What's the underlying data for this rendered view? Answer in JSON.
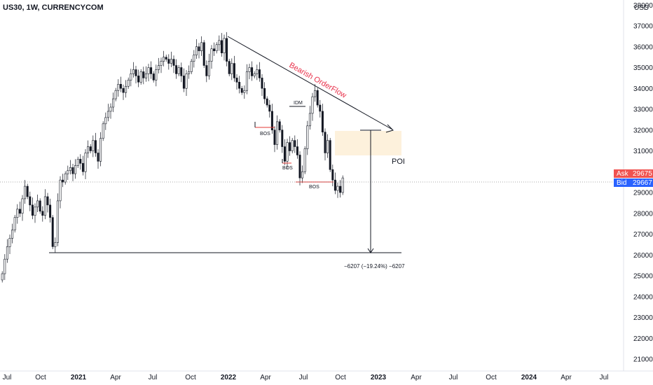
{
  "header": {
    "symbol": "US30, 1W, CURRENCYCOM",
    "currency": "USD"
  },
  "price_tags": {
    "ask_label": "Ask",
    "ask_value": "29675",
    "ask_color": "#f05350",
    "bid_label": "Bid",
    "bid_value": "29667",
    "bid_color": "#2962ff"
  },
  "annotations": {
    "trend_label": "Bearish OrderFlow",
    "trend_color": "#e8304a",
    "bos_labels": [
      "BOS",
      "BOS",
      "BOS"
    ],
    "idm_label": "IDM",
    "poi_label": "POI",
    "measure_label": "−6207 (−19.24%) −6207",
    "poi_color": "#fdf1dc",
    "bos_color": "#e53935"
  },
  "chart_data": {
    "type": "candlestick",
    "title": "US30, 1W, CURRENCYCOM",
    "ylabel": "USD",
    "ylim": [
      20500,
      38200
    ],
    "y_ticks": [
      21000,
      22000,
      23000,
      24000,
      25000,
      26000,
      27000,
      28000,
      29000,
      30000,
      31000,
      32000,
      33000,
      34000,
      35000,
      36000,
      37000,
      38000
    ],
    "x_ticks": [
      {
        "label": "Jul",
        "bold": false
      },
      {
        "label": "Oct",
        "bold": false
      },
      {
        "label": "2021",
        "bold": true
      },
      {
        "label": "Apr",
        "bold": false
      },
      {
        "label": "Jul",
        "bold": false
      },
      {
        "label": "Oct",
        "bold": false
      },
      {
        "label": "2022",
        "bold": true
      },
      {
        "label": "Apr",
        "bold": false
      },
      {
        "label": "Jul",
        "bold": false
      },
      {
        "label": "Oct",
        "bold": false
      },
      {
        "label": "2023",
        "bold": true
      },
      {
        "label": "Apr",
        "bold": false
      },
      {
        "label": "Jul",
        "bold": false
      },
      {
        "label": "Oct",
        "bold": false
      },
      {
        "label": "2024",
        "bold": true
      },
      {
        "label": "Apr",
        "bold": false
      },
      {
        "label": "Jul",
        "bold": false
      }
    ],
    "closes": [
      25100,
      25800,
      26400,
      26800,
      27200,
      27800,
      28200,
      28000,
      28700,
      29300,
      28800,
      28400,
      27900,
      28300,
      28600,
      28100,
      27900,
      28800,
      28400,
      27800,
      26400,
      26600,
      28600,
      29600,
      29500,
      29900,
      30050,
      30200,
      29900,
      30300,
      30600,
      30400,
      30000,
      30900,
      31200,
      31000,
      31500,
      30900,
      30500,
      31600,
      32300,
      32600,
      32900,
      33100,
      33500,
      33900,
      34200,
      34000,
      33800,
      34100,
      34400,
      34700,
      34900,
      34600,
      34300,
      34800,
      34500,
      34700,
      35000,
      34700,
      34400,
      34900,
      35100,
      35300,
      35500,
      35400,
      35200,
      35400,
      35100,
      34700,
      35000,
      34600,
      34000,
      34700,
      34800,
      35300,
      35600,
      36000,
      35800,
      36200,
      35100,
      34600,
      35300,
      35900,
      35800,
      36100,
      36300,
      35700,
      36400,
      35300,
      34700,
      35200,
      34500,
      34300,
      34000,
      33800,
      33900,
      34800,
      35000,
      34600,
      34700,
      34900,
      34500,
      34000,
      33500,
      33200,
      32900,
      32000,
      31300,
      32400,
      32000,
      31200,
      30500,
      31400,
      31000,
      31500,
      31200,
      30800,
      29700,
      30000,
      31100,
      32200,
      32800,
      33600,
      33900,
      33200,
      32900,
      31900,
      30900,
      31500,
      30100,
      29600,
      29100,
      29300,
      29000,
      29700
    ]
  }
}
